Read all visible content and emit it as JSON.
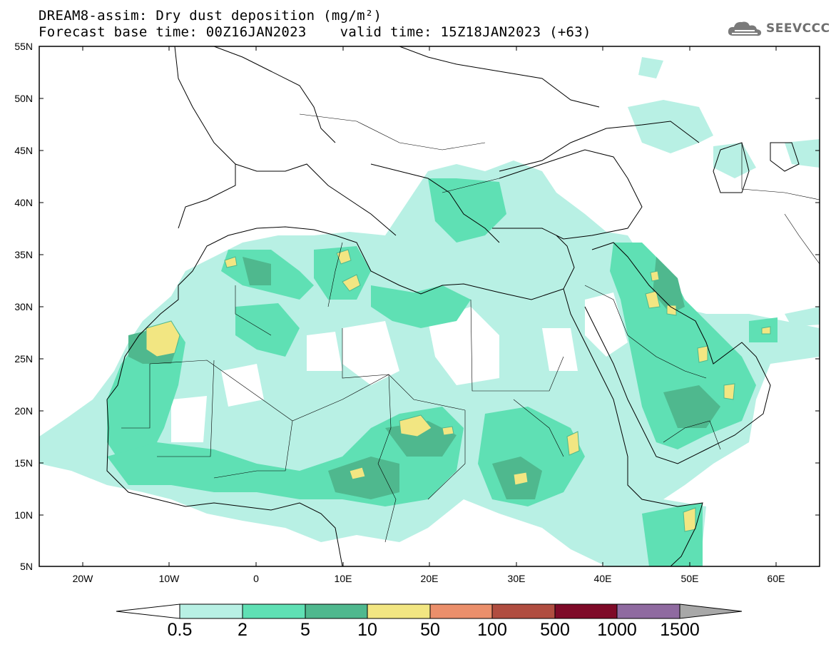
{
  "title": {
    "line1": "DREAM8-assim: Dry dust deposition (mg/m²)",
    "line2": "Forecast base time: 00Z16JAN2023    valid time: 15Z18JAN2023 (+63)"
  },
  "logo": {
    "text": "SEEVCCC",
    "icon": "cloud-icon"
  },
  "map_data": {
    "lon_range": [
      -25,
      65
    ],
    "lat_range": [
      5,
      55
    ],
    "lat_labels": [
      "55N",
      "50N",
      "45N",
      "40N",
      "35N",
      "30N",
      "25N",
      "20N",
      "15N",
      "10N",
      "5N"
    ],
    "lon_labels": [
      "20W",
      "10W",
      "0",
      "10E",
      "20E",
      "30E",
      "40E",
      "50E",
      "60E"
    ]
  },
  "colorbar": {
    "labels": [
      "0.5",
      "2",
      "5",
      "10",
      "50",
      "100",
      "500",
      "1000",
      "1500"
    ],
    "colors": [
      "#b8f0e4",
      "#5fe0b4",
      "#4fb88e",
      "#f2e682",
      "#eb8f6b",
      "#b04d40",
      "#7e0a28",
      "#8f6aa0",
      "#a8a8a8"
    ]
  }
}
